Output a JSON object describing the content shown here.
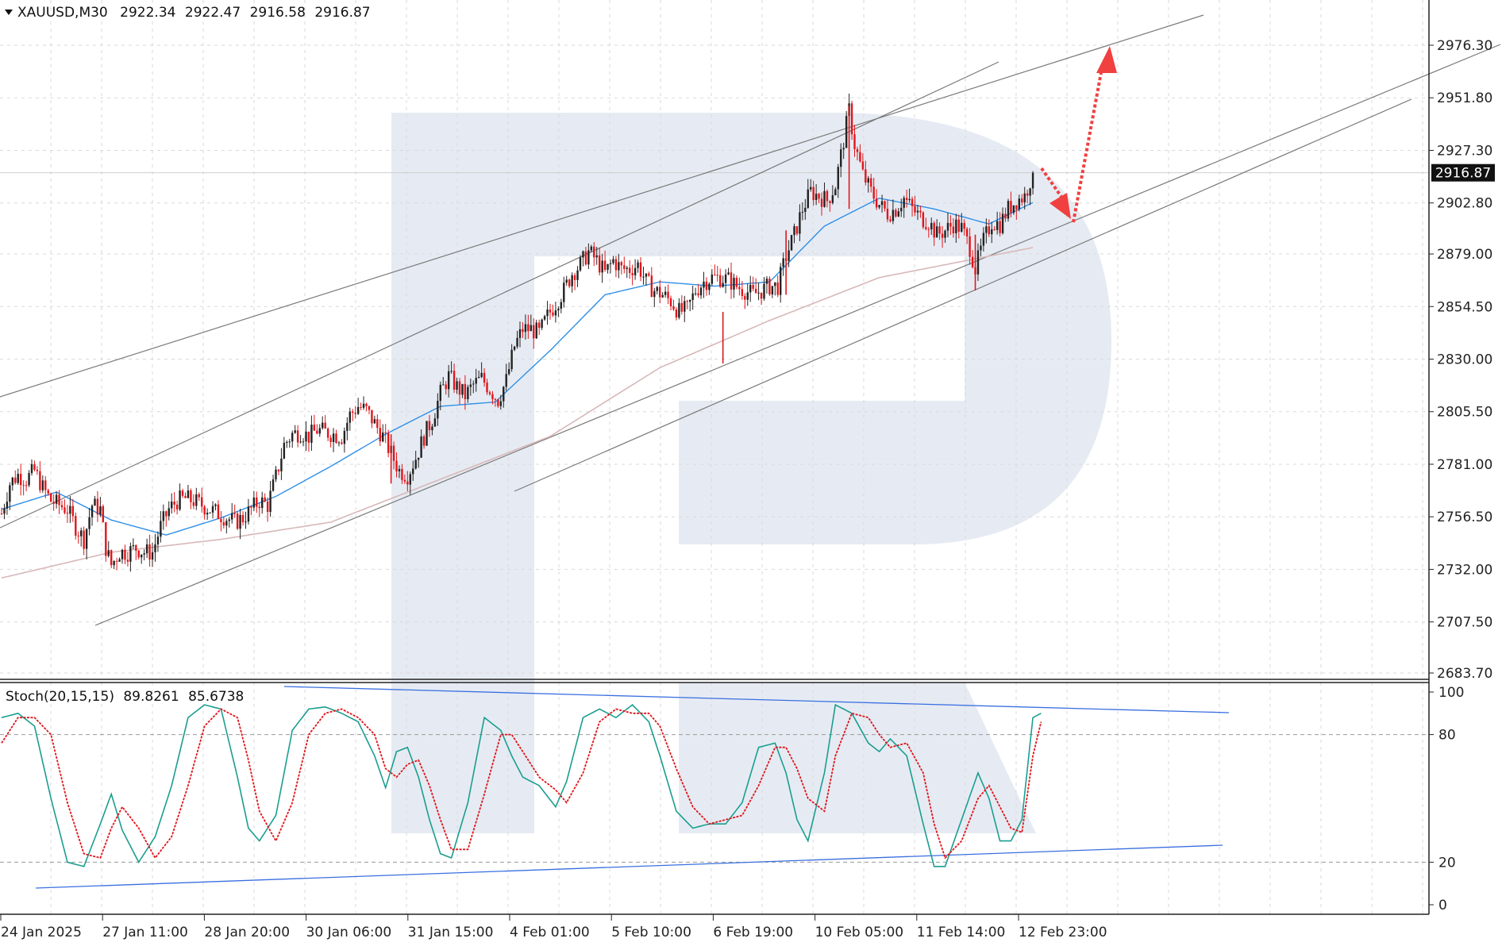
{
  "colors": {
    "bull": "#222222",
    "bear": "#e0161b",
    "ma_fast": "#2f8fe6",
    "ma_slow": "#d8b8b8",
    "stoch_main": "#1a9e8f",
    "stoch_signal": "#e0161b",
    "trendline": "#7a7a7a",
    "stoch_trendline": "#3a6fe0",
    "arrow": "#f04040",
    "watermark": "#e6ebf3",
    "grid": "#d9d9d9",
    "current_price_bg": "#111111"
  },
  "header": {
    "symbol": "XAUUSD,M30",
    "open": "2922.34",
    "high": "2922.47",
    "low": "2916.58",
    "close": "2916.87"
  },
  "stoch_header": {
    "label": "Stoch(20,15,15)",
    "main": "89.8261",
    "signal": "85.6738"
  },
  "chart_data": [
    {
      "type": "candlestick",
      "symbol": "XAUUSD",
      "timeframe": "M30",
      "ylim": [
        2683.7,
        2990
      ],
      "y_ticks": [
        "2976.30",
        "2951.80",
        "2927.30",
        "2902.80",
        "2879.00",
        "2854.50",
        "2830.00",
        "2805.50",
        "2781.00",
        "2756.50",
        "2732.00",
        "2707.50",
        "2683.70"
      ],
      "x_ticks": [
        "24 Jan 2025",
        "27 Jan 11:00",
        "28 Jan 20:00",
        "30 Jan 06:00",
        "31 Jan 15:00",
        "4 Feb 01:00",
        "5 Feb 10:00",
        "6 Feb 19:00",
        "10 Feb 05:00",
        "11 Feb 14:00",
        "12 Feb 23:00"
      ],
      "current_price": "2916.87",
      "price_path": [
        [
          0,
          2758
        ],
        [
          3,
          2772
        ],
        [
          6,
          2776
        ],
        [
          9,
          2774
        ],
        [
          12,
          2778
        ],
        [
          15,
          2770
        ],
        [
          18,
          2764
        ],
        [
          21,
          2762
        ],
        [
          24,
          2760
        ],
        [
          27,
          2752
        ],
        [
          30,
          2746
        ],
        [
          33,
          2762
        ],
        [
          36,
          2760
        ],
        [
          38,
          2742
        ],
        [
          40,
          2734
        ],
        [
          43,
          2740
        ],
        [
          46,
          2740
        ],
        [
          49,
          2742
        ],
        [
          52,
          2740
        ],
        [
          55,
          2740
        ],
        [
          58,
          2752
        ],
        [
          61,
          2760
        ],
        [
          64,
          2764
        ],
        [
          67,
          2765
        ],
        [
          70,
          2764
        ],
        [
          73,
          2762
        ],
        [
          76,
          2760
        ],
        [
          79,
          2758
        ],
        [
          82,
          2756
        ],
        [
          85,
          2754
        ],
        [
          88,
          2756
        ],
        [
          91,
          2760
        ],
        [
          94,
          2764
        ],
        [
          97,
          2762
        ],
        [
          100,
          2775
        ],
        [
          103,
          2790
        ],
        [
          106,
          2795
        ],
        [
          109,
          2796
        ],
        [
          112,
          2794
        ],
        [
          115,
          2797
        ],
        [
          118,
          2796
        ],
        [
          121,
          2795
        ],
        [
          124,
          2794
        ],
        [
          127,
          2804
        ],
        [
          130,
          2808
        ],
        [
          133,
          2806
        ],
        [
          136,
          2800
        ],
        [
          139,
          2794
        ],
        [
          142,
          2786
        ],
        [
          145,
          2778
        ],
        [
          148,
          2776
        ],
        [
          151,
          2784
        ],
        [
          154,
          2794
        ],
        [
          157,
          2802
        ],
        [
          160,
          2814
        ],
        [
          163,
          2822
        ],
        [
          166,
          2817
        ],
        [
          169,
          2813
        ],
        [
          172,
          2818
        ],
        [
          175,
          2821
        ],
        [
          178,
          2816
        ],
        [
          181,
          2811
        ],
        [
          184,
          2820
        ],
        [
          187,
          2836
        ],
        [
          190,
          2844
        ],
        [
          193,
          2844
        ],
        [
          196,
          2842
        ],
        [
          199,
          2850
        ],
        [
          202,
          2856
        ],
        [
          205,
          2862
        ],
        [
          208,
          2870
        ],
        [
          211,
          2874
        ],
        [
          214,
          2880
        ],
        [
          217,
          2876
        ],
        [
          220,
          2870
        ],
        [
          223,
          2876
        ],
        [
          226,
          2872
        ],
        [
          229,
          2872
        ],
        [
          232,
          2874
        ],
        [
          235,
          2866
        ],
        [
          238,
          2862
        ],
        [
          241,
          2860
        ],
        [
          244,
          2857
        ],
        [
          247,
          2852
        ],
        [
          250,
          2853
        ],
        [
          253,
          2862
        ],
        [
          256,
          2866
        ],
        [
          259,
          2868
        ],
        [
          262,
          2868
        ],
        [
          265,
          2867
        ],
        [
          268,
          2864
        ],
        [
          271,
          2862
        ],
        [
          274,
          2860
        ],
        [
          277,
          2862
        ],
        [
          280,
          2864
        ],
        [
          283,
          2864
        ],
        [
          286,
          2878
        ],
        [
          289,
          2888
        ],
        [
          292,
          2900
        ],
        [
          295,
          2908
        ],
        [
          298,
          2906
        ],
        [
          301,
          2904
        ],
        [
          304,
          2911
        ],
        [
          307,
          2932
        ],
        [
          309,
          2946
        ],
        [
          311,
          2930
        ],
        [
          314,
          2916
        ],
        [
          317,
          2908
        ],
        [
          320,
          2902
        ],
        [
          323,
          2898
        ],
        [
          326,
          2900
        ],
        [
          329,
          2905
        ],
        [
          332,
          2900
        ],
        [
          335,
          2896
        ],
        [
          338,
          2894
        ],
        [
          341,
          2888
        ],
        [
          344,
          2890
        ],
        [
          347,
          2893
        ],
        [
          350,
          2891
        ],
        [
          353,
          2882
        ],
        [
          355,
          2872
        ],
        [
          358,
          2885
        ],
        [
          361,
          2894
        ],
        [
          364,
          2893
        ],
        [
          367,
          2900
        ],
        [
          370,
          2904
        ],
        [
          373,
          2906
        ],
        [
          376,
          2917
        ]
      ],
      "ma_fast_path": [
        [
          0,
          2760
        ],
        [
          20,
          2768
        ],
        [
          40,
          2755
        ],
        [
          60,
          2748
        ],
        [
          80,
          2756
        ],
        [
          100,
          2766
        ],
        [
          120,
          2780
        ],
        [
          140,
          2795
        ],
        [
          160,
          2808
        ],
        [
          180,
          2810
        ],
        [
          200,
          2834
        ],
        [
          220,
          2860
        ],
        [
          240,
          2866
        ],
        [
          260,
          2864
        ],
        [
          280,
          2866
        ],
        [
          300,
          2892
        ],
        [
          320,
          2905
        ],
        [
          340,
          2900
        ],
        [
          360,
          2893
        ],
        [
          376,
          2903
        ]
      ],
      "ma_slow_path": [
        [
          0,
          2728
        ],
        [
          40,
          2740
        ],
        [
          80,
          2746
        ],
        [
          120,
          2754
        ],
        [
          160,
          2774
        ],
        [
          200,
          2794
        ],
        [
          240,
          2826
        ],
        [
          280,
          2848
        ],
        [
          320,
          2868
        ],
        [
          360,
          2878
        ],
        [
          376,
          2882
        ]
      ],
      "stochastic": {
        "ylim": [
          0,
          100
        ],
        "levels": [
          "100",
          "80",
          "20",
          "0"
        ],
        "main_path": [
          [
            0,
            88
          ],
          [
            6,
            90
          ],
          [
            12,
            84
          ],
          [
            18,
            50
          ],
          [
            24,
            20
          ],
          [
            30,
            18
          ],
          [
            36,
            38
          ],
          [
            40,
            52
          ],
          [
            44,
            35
          ],
          [
            50,
            20
          ],
          [
            56,
            32
          ],
          [
            62,
            56
          ],
          [
            68,
            88
          ],
          [
            74,
            94
          ],
          [
            80,
            92
          ],
          [
            86,
            60
          ],
          [
            90,
            36
          ],
          [
            94,
            30
          ],
          [
            100,
            42
          ],
          [
            106,
            82
          ],
          [
            112,
            92
          ],
          [
            118,
            93
          ],
          [
            124,
            90
          ],
          [
            130,
            86
          ],
          [
            136,
            70
          ],
          [
            140,
            55
          ],
          [
            144,
            72
          ],
          [
            148,
            74
          ],
          [
            152,
            60
          ],
          [
            156,
            40
          ],
          [
            160,
            24
          ],
          [
            164,
            22
          ],
          [
            170,
            48
          ],
          [
            176,
            88
          ],
          [
            182,
            82
          ],
          [
            186,
            70
          ],
          [
            190,
            60
          ],
          [
            196,
            56
          ],
          [
            202,
            46
          ],
          [
            206,
            58
          ],
          [
            212,
            88
          ],
          [
            218,
            92
          ],
          [
            224,
            88
          ],
          [
            230,
            94
          ],
          [
            236,
            86
          ],
          [
            240,
            70
          ],
          [
            246,
            44
          ],
          [
            252,
            36
          ],
          [
            258,
            38
          ],
          [
            264,
            38
          ],
          [
            270,
            48
          ],
          [
            276,
            74
          ],
          [
            282,
            76
          ],
          [
            286,
            62
          ],
          [
            290,
            40
          ],
          [
            294,
            30
          ],
          [
            300,
            62
          ],
          [
            304,
            94
          ],
          [
            310,
            90
          ],
          [
            316,
            76
          ],
          [
            320,
            72
          ],
          [
            324,
            78
          ],
          [
            330,
            70
          ],
          [
            336,
            38
          ],
          [
            340,
            18
          ],
          [
            344,
            18
          ],
          [
            350,
            40
          ],
          [
            356,
            62
          ],
          [
            360,
            50
          ],
          [
            364,
            30
          ],
          [
            368,
            30
          ],
          [
            372,
            40
          ],
          [
            376,
            88
          ],
          [
            379,
            90
          ]
        ],
        "signal_path": [
          [
            0,
            76
          ],
          [
            6,
            88
          ],
          [
            12,
            88
          ],
          [
            18,
            80
          ],
          [
            24,
            48
          ],
          [
            30,
            24
          ],
          [
            36,
            22
          ],
          [
            40,
            36
          ],
          [
            44,
            46
          ],
          [
            50,
            36
          ],
          [
            56,
            22
          ],
          [
            62,
            32
          ],
          [
            68,
            56
          ],
          [
            74,
            84
          ],
          [
            80,
            92
          ],
          [
            86,
            88
          ],
          [
            90,
            68
          ],
          [
            94,
            44
          ],
          [
            100,
            30
          ],
          [
            106,
            48
          ],
          [
            112,
            80
          ],
          [
            118,
            90
          ],
          [
            124,
            92
          ],
          [
            130,
            88
          ],
          [
            136,
            80
          ],
          [
            140,
            64
          ],
          [
            144,
            60
          ],
          [
            148,
            66
          ],
          [
            152,
            68
          ],
          [
            156,
            56
          ],
          [
            160,
            40
          ],
          [
            164,
            26
          ],
          [
            170,
            26
          ],
          [
            176,
            52
          ],
          [
            182,
            80
          ],
          [
            186,
            80
          ],
          [
            190,
            72
          ],
          [
            196,
            60
          ],
          [
            202,
            54
          ],
          [
            206,
            48
          ],
          [
            212,
            62
          ],
          [
            218,
            86
          ],
          [
            224,
            92
          ],
          [
            230,
            90
          ],
          [
            236,
            90
          ],
          [
            240,
            84
          ],
          [
            246,
            64
          ],
          [
            252,
            46
          ],
          [
            258,
            38
          ],
          [
            264,
            40
          ],
          [
            270,
            42
          ],
          [
            276,
            56
          ],
          [
            282,
            74
          ],
          [
            286,
            74
          ],
          [
            290,
            64
          ],
          [
            294,
            50
          ],
          [
            300,
            44
          ],
          [
            304,
            70
          ],
          [
            310,
            90
          ],
          [
            316,
            88
          ],
          [
            320,
            80
          ],
          [
            324,
            74
          ],
          [
            330,
            76
          ],
          [
            336,
            62
          ],
          [
            340,
            38
          ],
          [
            344,
            22
          ],
          [
            350,
            30
          ],
          [
            356,
            50
          ],
          [
            360,
            56
          ],
          [
            364,
            46
          ],
          [
            368,
            36
          ],
          [
            372,
            34
          ],
          [
            376,
            70
          ],
          [
            379,
            86
          ]
        ]
      }
    }
  ]
}
